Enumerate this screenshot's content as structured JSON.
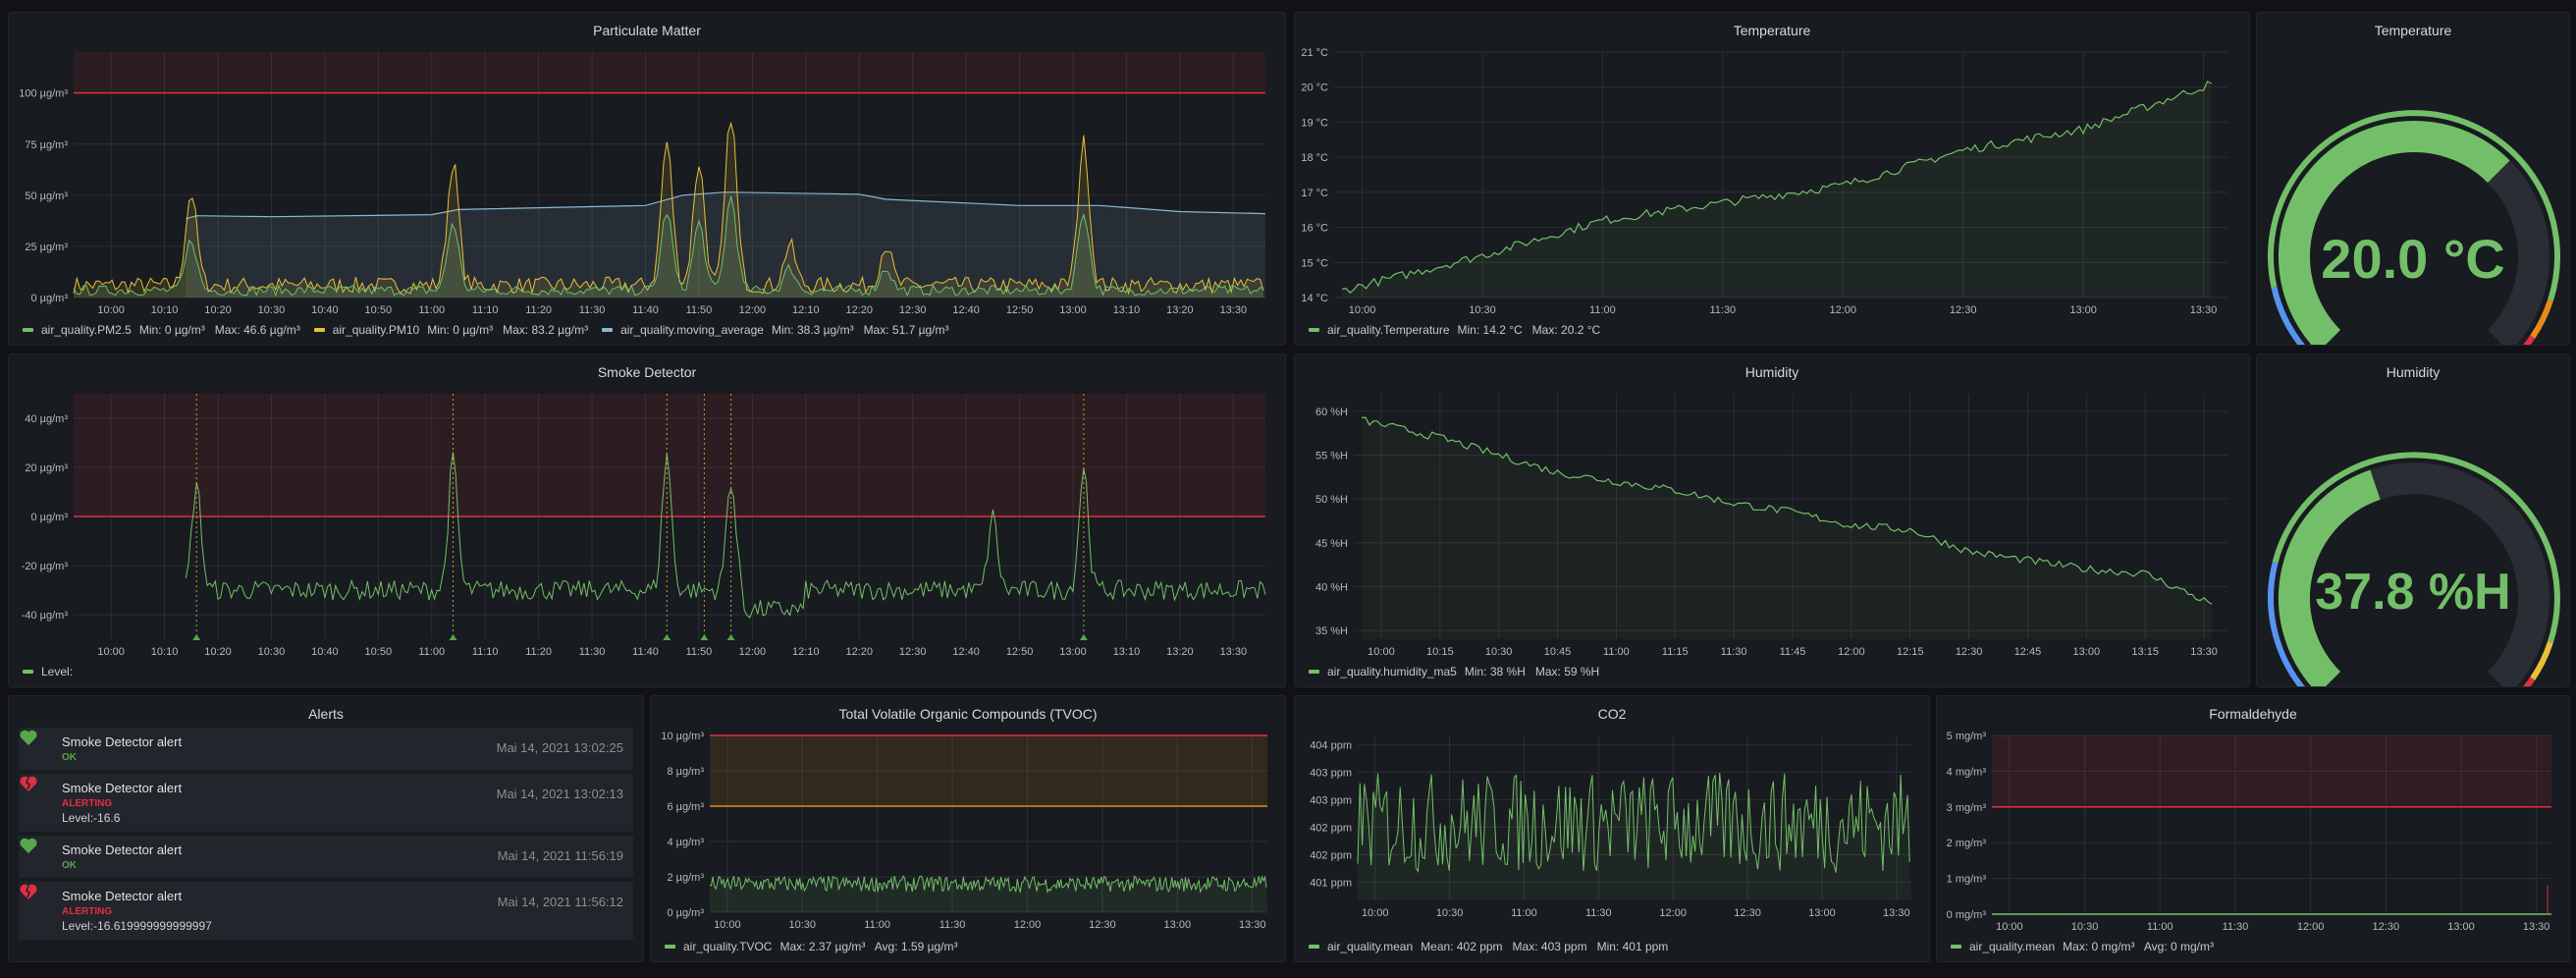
{
  "colors": {
    "bg": "#111217",
    "panel": "#181b1f",
    "green": "#73bf69",
    "yellow": "#e8c03a",
    "cyan": "#8ab8d4",
    "red": "#e02f44",
    "orange": "#e88a1c",
    "blue": "#5794f2"
  },
  "panels": {
    "pm": {
      "title": "Particulate Matter",
      "legend": [
        {
          "name": "air_quality.PM2.5",
          "stats": "Min: 0 µg/m³   Max: 46.6 µg/m³",
          "color": "#73bf69"
        },
        {
          "name": "air_quality.PM10",
          "stats": "Min: 0 µg/m³   Max: 83.2 µg/m³",
          "color": "#e8c03a"
        },
        {
          "name": "air_quality.moving_average",
          "stats": "Min: 38.3 µg/m³   Max: 51.7 µg/m³",
          "color": "#8ab8d4"
        }
      ]
    },
    "temp": {
      "title": "Temperature",
      "legend": [
        {
          "name": "air_quality.Temperature",
          "stats": "Min: 14.2 °C   Max: 20.2 °C",
          "color": "#73bf69"
        }
      ]
    },
    "temp_gauge": {
      "title": "Temperature",
      "value": "20.0 °C"
    },
    "smoke": {
      "title": "Smoke Detector",
      "legend": [
        {
          "name": "Level:",
          "stats": "",
          "color": "#73bf69"
        }
      ]
    },
    "humidity": {
      "title": "Humidity",
      "legend": [
        {
          "name": "air_quality.humidity_ma5",
          "stats": "Min: 38 %H   Max: 59 %H",
          "color": "#73bf69"
        }
      ]
    },
    "humidity_gauge": {
      "title": "Humidity",
      "value": "37.8 %H"
    },
    "alerts": {
      "title": "Alerts",
      "items": [
        {
          "name": "Smoke Detector alert",
          "state": "OK",
          "time": "Mai 14, 2021 13:02:25",
          "info": ""
        },
        {
          "name": "Smoke Detector alert",
          "state": "ALERTING",
          "time": "Mai 14, 2021 13:02:13",
          "info": "Level:-16.6"
        },
        {
          "name": "Smoke Detector alert",
          "state": "OK",
          "time": "Mai 14, 2021 11:56:19",
          "info": ""
        },
        {
          "name": "Smoke Detector alert",
          "state": "ALERTING",
          "time": "Mai 14, 2021 11:56:12",
          "info": "Level:-16.619999999999997"
        }
      ]
    },
    "tvoc": {
      "title": "Total Volatile Organic Compounds (TVOC)",
      "legend": [
        {
          "name": "air_quality.TVOC",
          "stats": "Max: 2.37 µg/m³   Avg: 1.59 µg/m³",
          "color": "#73bf69"
        }
      ]
    },
    "co2": {
      "title": "CO2",
      "legend": [
        {
          "name": "air_quality.mean",
          "stats": "Mean: 402 ppm   Max: 403 ppm   Min: 401 ppm",
          "color": "#73bf69"
        }
      ]
    },
    "formaldehyde": {
      "title": "Formaldehyde",
      "legend": [
        {
          "name": "air_quality.mean",
          "stats": "Max: 0 mg/m³   Avg: 0 mg/m³",
          "color": "#73bf69"
        }
      ]
    }
  },
  "chart_data": [
    {
      "id": "pm",
      "type": "line",
      "title": "Particulate Matter",
      "x_ticks": [
        "10:00",
        "10:10",
        "10:20",
        "10:30",
        "10:40",
        "10:50",
        "11:00",
        "11:10",
        "11:20",
        "11:30",
        "11:40",
        "11:50",
        "12:00",
        "12:10",
        "12:20",
        "12:30",
        "12:40",
        "12:50",
        "13:00",
        "13:10",
        "13:20",
        "13:30"
      ],
      "y_ticks": [
        "0 µg/m³",
        "25 µg/m³",
        "50 µg/m³",
        "75 µg/m³",
        "100 µg/m³"
      ],
      "ylim": [
        0,
        120
      ],
      "threshold": 100,
      "series": [
        {
          "name": "air_quality.PM2.5",
          "min": 0,
          "max": 46.6
        },
        {
          "name": "air_quality.PM10",
          "min": 0,
          "max": 83.2,
          "peaks": [
            {
              "t": "10:15",
              "v": 45
            },
            {
              "t": "11:04",
              "v": 60
            },
            {
              "t": "11:44",
              "v": 70
            },
            {
              "t": "11:50",
              "v": 60
            },
            {
              "t": "11:56",
              "v": 83
            },
            {
              "t": "12:07",
              "v": 20
            },
            {
              "t": "12:25",
              "v": 20
            },
            {
              "t": "13:02",
              "v": 70
            }
          ]
        },
        {
          "name": "air_quality.moving_average",
          "min": 38.3,
          "max": 51.7
        }
      ]
    },
    {
      "id": "temp",
      "type": "line",
      "title": "Temperature",
      "x_ticks": [
        "10:00",
        "10:30",
        "11:00",
        "11:30",
        "12:00",
        "12:30",
        "13:00",
        "13:30"
      ],
      "y_ticks": [
        "14 °C",
        "15 °C",
        "16 °C",
        "17 °C",
        "18 °C",
        "19 °C",
        "20 °C",
        "21 °C"
      ],
      "ylim": [
        14,
        21
      ],
      "series": [
        {
          "name": "air_quality.Temperature",
          "x": [
            "09:55",
            "10:30",
            "11:00",
            "11:30",
            "12:00",
            "12:30",
            "13:00",
            "13:32"
          ],
          "y": [
            14.2,
            15.2,
            16.2,
            16.7,
            17.2,
            18.2,
            18.8,
            20.1
          ]
        }
      ]
    },
    {
      "id": "smoke",
      "type": "line",
      "title": "Smoke Detector",
      "x_ticks": [
        "10:00",
        "10:10",
        "10:20",
        "10:30",
        "10:40",
        "10:50",
        "11:00",
        "11:10",
        "11:20",
        "11:30",
        "11:40",
        "11:50",
        "12:00",
        "12:10",
        "12:20",
        "12:30",
        "12:40",
        "12:50",
        "13:00",
        "13:10",
        "13:20",
        "13:30"
      ],
      "y_ticks": [
        "-40 µg/m³",
        "-20 µg/m³",
        "0 µg/m³",
        "20 µg/m³",
        "40 µg/m³"
      ],
      "ylim": [
        -50,
        50
      ],
      "threshold": 0,
      "series": [
        {
          "name": "Level:",
          "baseline": -30,
          "peaks": [
            {
              "t": "10:16",
              "v": 13
            },
            {
              "t": "11:04",
              "v": 23
            },
            {
              "t": "11:44",
              "v": 25
            },
            {
              "t": "11:56",
              "v": 15
            },
            {
              "t": "12:45",
              "v": 0
            },
            {
              "t": "13:02",
              "v": 20
            }
          ]
        }
      ]
    },
    {
      "id": "humidity",
      "type": "line",
      "title": "Humidity",
      "x_ticks": [
        "10:00",
        "10:15",
        "10:30",
        "10:45",
        "11:00",
        "11:15",
        "11:30",
        "11:45",
        "12:00",
        "12:15",
        "12:30",
        "12:45",
        "13:00",
        "13:15",
        "13:30"
      ],
      "y_ticks": [
        "35 %H",
        "40 %H",
        "45 %H",
        "50 %H",
        "55 %H",
        "60 %H"
      ],
      "ylim": [
        35,
        62
      ],
      "series": [
        {
          "name": "air_quality.humidity_ma5",
          "x": [
            "09:55",
            "10:15",
            "10:30",
            "10:45",
            "11:00",
            "11:15",
            "11:30",
            "11:45",
            "12:00",
            "12:15",
            "12:30",
            "12:45",
            "13:00",
            "13:15",
            "13:32"
          ],
          "y": [
            59,
            57,
            55,
            53,
            52,
            51,
            49.5,
            48.5,
            47,
            46.5,
            44,
            43,
            42,
            41.5,
            38
          ]
        }
      ]
    },
    {
      "id": "tvoc",
      "type": "line",
      "title": "Total Volatile Organic Compounds (TVOC)",
      "x_ticks": [
        "10:00",
        "10:30",
        "11:00",
        "11:30",
        "12:00",
        "12:30",
        "13:00",
        "13:30"
      ],
      "y_ticks": [
        "0 µg/m³",
        "2 µg/m³",
        "4 µg/m³",
        "6 µg/m³",
        "8 µg/m³",
        "10 µg/m³"
      ],
      "ylim": [
        0,
        10
      ],
      "thresholds": [
        6,
        10
      ],
      "series": [
        {
          "name": "air_quality.TVOC",
          "max": 2.37,
          "avg": 1.59
        }
      ]
    },
    {
      "id": "co2",
      "type": "line",
      "title": "CO2",
      "x_ticks": [
        "10:00",
        "10:30",
        "11:00",
        "11:30",
        "12:00",
        "12:30",
        "13:00",
        "13:30"
      ],
      "y_ticks": [
        "401 ppm",
        "402 ppm",
        "402 ppm",
        "403 ppm",
        "403 ppm",
        "404 ppm"
      ],
      "ylim": [
        400.6,
        404
      ],
      "series": [
        {
          "name": "air_quality.mean",
          "mean": 402,
          "max": 403,
          "min": 401
        }
      ]
    },
    {
      "id": "formaldehyde",
      "type": "line",
      "title": "Formaldehyde",
      "x_ticks": [
        "10:00",
        "10:30",
        "11:00",
        "11:30",
        "12:00",
        "12:30",
        "13:00",
        "13:30"
      ],
      "y_ticks": [
        "0 mg/m³",
        "1 mg/m³",
        "2 mg/m³",
        "3 mg/m³",
        "4 mg/m³",
        "5 mg/m³"
      ],
      "ylim": [
        0,
        5
      ],
      "threshold": 3,
      "series": [
        {
          "name": "air_quality.mean",
          "max": 0,
          "avg": 0
        }
      ]
    },
    {
      "id": "temp_gauge",
      "type": "gauge",
      "value": 20.0,
      "unit": "°C",
      "min": 0,
      "max": 30
    },
    {
      "id": "humidity_gauge",
      "type": "gauge",
      "value": 37.8,
      "unit": "%H",
      "min": 0,
      "max": 100
    }
  ]
}
